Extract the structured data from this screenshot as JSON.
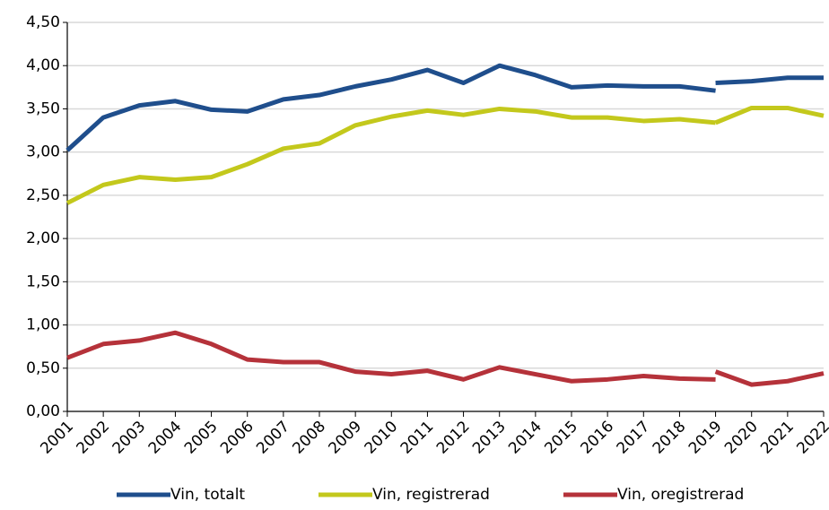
{
  "chart_data": {
    "type": "line",
    "x": [
      2001,
      2002,
      2003,
      2004,
      2005,
      2006,
      2007,
      2008,
      2009,
      2010,
      2011,
      2012,
      2013,
      2014,
      2015,
      2016,
      2017,
      2018,
      2019,
      2019,
      2019,
      2020,
      2021,
      2022
    ],
    "series": [
      {
        "name": "Vin, totalt",
        "color": "#1f4e8c",
        "values": [
          3.02,
          3.4,
          3.54,
          3.59,
          3.49,
          3.47,
          3.61,
          3.66,
          3.76,
          3.84,
          3.95,
          3.8,
          4.0,
          3.89,
          3.75,
          3.77,
          3.76,
          3.76,
          3.71,
          null,
          3.8,
          3.82,
          3.86,
          3.86
        ]
      },
      {
        "name": "Vin, registrerad",
        "color": "#c3c81c",
        "values": [
          2.41,
          2.62,
          2.71,
          2.68,
          2.71,
          2.86,
          3.04,
          3.1,
          3.31,
          3.41,
          3.48,
          3.43,
          3.5,
          3.47,
          3.4,
          3.4,
          3.36,
          3.38,
          3.34,
          null,
          3.34,
          3.51,
          3.51,
          3.42
        ]
      },
      {
        "name": "Vin, oregistrerad",
        "color": "#b5323a",
        "values": [
          0.62,
          0.78,
          0.82,
          0.91,
          0.78,
          0.6,
          0.57,
          0.57,
          0.46,
          0.43,
          0.47,
          0.37,
          0.51,
          0.43,
          0.35,
          0.37,
          0.41,
          0.38,
          0.37,
          null,
          0.46,
          0.31,
          0.35,
          0.44
        ]
      }
    ],
    "xlim": [
      2001,
      2022
    ],
    "xticks": [
      2001,
      2002,
      2003,
      2004,
      2005,
      2006,
      2007,
      2008,
      2009,
      2010,
      2011,
      2012,
      2013,
      2014,
      2015,
      2016,
      2017,
      2018,
      2019,
      2020,
      2021,
      2022
    ],
    "ylim": [
      0,
      4.5
    ],
    "yticks": [
      {
        "value": 0,
        "label": "0,00"
      },
      {
        "value": 0.5,
        "label": "0,50"
      },
      {
        "value": 1,
        "label": "1,00"
      },
      {
        "value": 1.5,
        "label": "1,50"
      },
      {
        "value": 2,
        "label": "2,00"
      },
      {
        "value": 2.5,
        "label": "2,50"
      },
      {
        "value": 3,
        "label": "3,00"
      },
      {
        "value": 3.5,
        "label": "3,50"
      },
      {
        "value": 4,
        "label": "4,00"
      },
      {
        "value": 4.5,
        "label": "4,50"
      }
    ],
    "grid": true,
    "legend": "bottom"
  }
}
